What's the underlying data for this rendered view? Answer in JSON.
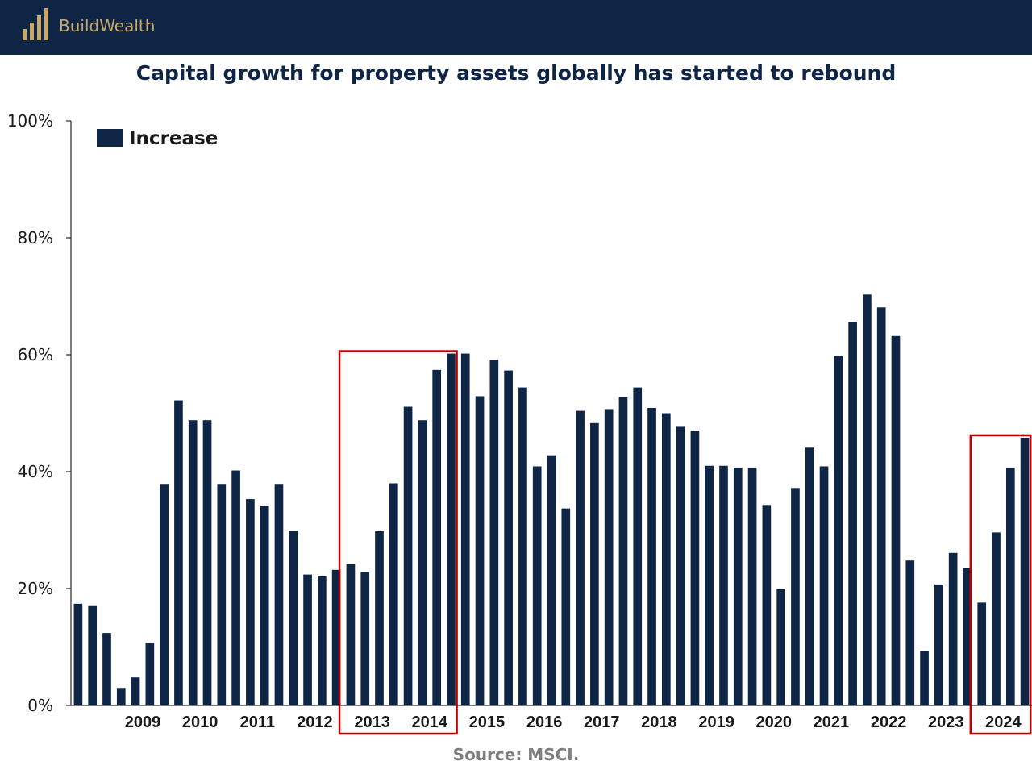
{
  "header": {
    "brand": "BuildWealth",
    "colors": {
      "background": "#0e2545",
      "accent": "#c9a96a"
    },
    "logo_icon": "bar-columns-icon"
  },
  "chart_data": {
    "type": "bar",
    "title": "Capital growth for property assets globally has started to rebound",
    "xlabel": "",
    "ylabel": "",
    "ylim": [
      0,
      100
    ],
    "ytick_values": [
      0,
      20,
      40,
      60,
      80,
      100
    ],
    "ytick_labels": [
      "0%",
      "20%",
      "40%",
      "60%",
      "80%",
      "100%"
    ],
    "grid": false,
    "legend": {
      "entries": [
        "Increase"
      ],
      "placement": "top-left"
    },
    "bar_color": "#0e2545",
    "highlight_color": "#c00000",
    "year_labels": [
      "2009",
      "2010",
      "2011",
      "2012",
      "2013",
      "2014",
      "2015",
      "2016",
      "2017",
      "2018",
      "2019",
      "2020",
      "2021",
      "2022",
      "2023",
      "2024"
    ],
    "series": [
      {
        "name": "Increase",
        "values": [
          17.4,
          17.0,
          12.4,
          3.0,
          4.8,
          10.7,
          37.9,
          52.2,
          48.8,
          48.8,
          37.9,
          40.2,
          35.3,
          34.2,
          37.9,
          29.9,
          22.4,
          22.1,
          23.2,
          24.2,
          22.8,
          29.8,
          38.0,
          51.1,
          48.8,
          57.4,
          60.2,
          60.2,
          52.9,
          59.1,
          57.3,
          54.4,
          40.9,
          42.8,
          33.7,
          50.4,
          48.3,
          50.7,
          52.7,
          54.4,
          50.9,
          50.0,
          47.8,
          47.0,
          41.0,
          41.0,
          40.7,
          40.7,
          34.3,
          19.9,
          37.2,
          44.1,
          40.9,
          59.8,
          65.6,
          70.3,
          68.1,
          63.2,
          24.8,
          9.3,
          20.7,
          26.1,
          23.5,
          17.6,
          29.6,
          40.7,
          45.8
        ]
      }
    ],
    "annotations": [
      {
        "type": "highlight-box",
        "from_year": "2013",
        "to_year": "2014"
      },
      {
        "type": "highlight-box",
        "from_year": "2024",
        "to_year": "2024"
      }
    ]
  },
  "footer": {
    "source": "Source: MSCI."
  }
}
